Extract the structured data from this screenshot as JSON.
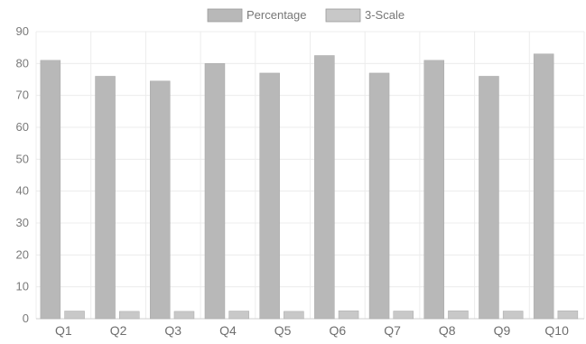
{
  "colors": {
    "percentage": "#b8b8b8",
    "scale": "#c8c8c8",
    "grid": "#ececec",
    "axis": "#cfcfcf"
  },
  "chart_data": {
    "type": "bar",
    "categories": [
      "Q1",
      "Q2",
      "Q3",
      "Q4",
      "Q5",
      "Q6",
      "Q7",
      "Q8",
      "Q9",
      "Q10"
    ],
    "series": [
      {
        "name": "Percentage",
        "values": [
          81,
          76,
          74.5,
          80,
          77,
          82.5,
          77,
          81,
          76,
          83
        ]
      },
      {
        "name": "3-Scale",
        "values": [
          2.4,
          2.3,
          2.3,
          2.4,
          2.3,
          2.5,
          2.4,
          2.5,
          2.4,
          2.5
        ]
      }
    ],
    "ylim": [
      0,
      90
    ],
    "yticks": [
      0,
      10,
      20,
      30,
      40,
      50,
      60,
      70,
      80,
      90
    ],
    "grid": true,
    "legend": "top-center"
  }
}
